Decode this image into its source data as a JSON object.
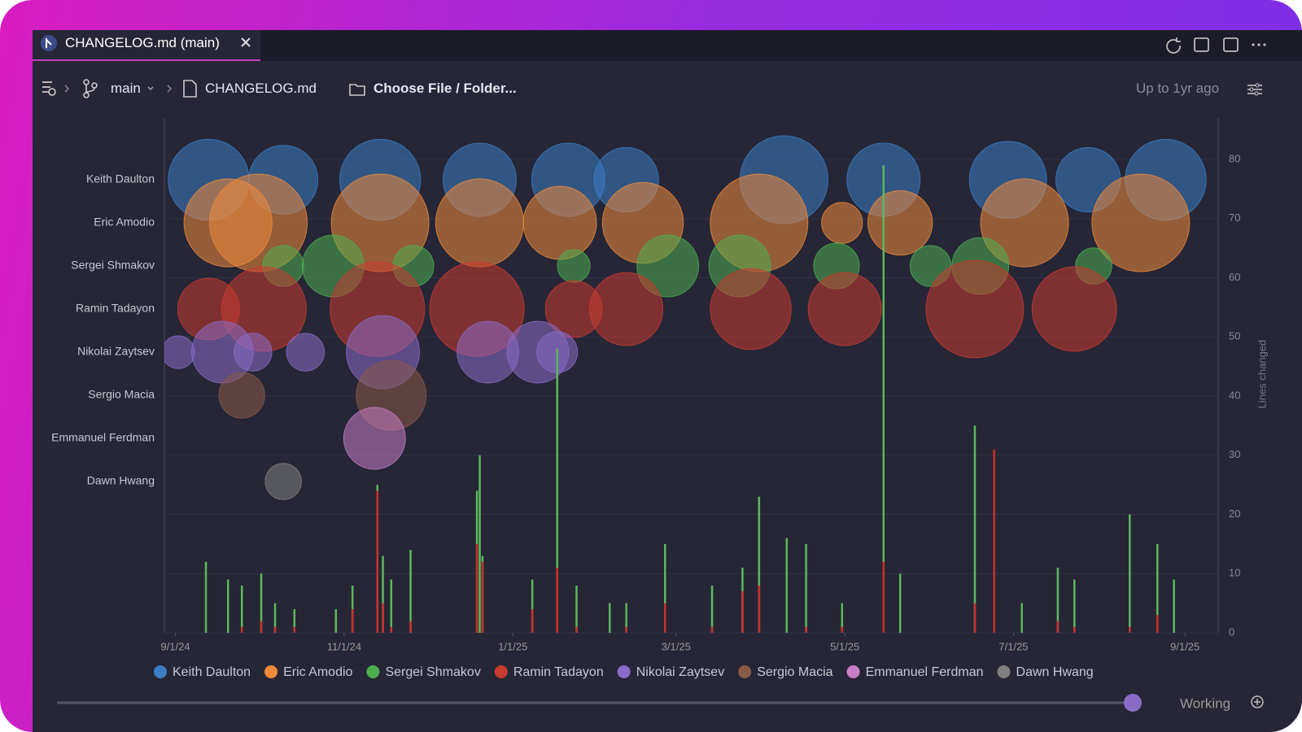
{
  "tab": {
    "title": "CHANGELOG.md (main)"
  },
  "toolbar": {
    "branch": "main",
    "file": "CHANGELOG.md",
    "picker": "Choose File / Folder...",
    "range": "Up to 1yr ago"
  },
  "footer": {
    "status": "Working"
  },
  "chart_data": {
    "type": "bubble",
    "y2label": "Lines changed",
    "xlim": [
      "2024-08-28",
      "2025-09-13"
    ],
    "xticks": [
      {
        "value": "2024-09-01",
        "label": "9/1/24"
      },
      {
        "value": "2024-11-01",
        "label": "11/1/24"
      },
      {
        "value": "2025-01-01",
        "label": "1/1/25"
      },
      {
        "value": "2025-03-01",
        "label": "3/1/25"
      },
      {
        "value": "2025-05-01",
        "label": "5/1/25"
      },
      {
        "value": "2025-07-01",
        "label": "7/1/25"
      },
      {
        "value": "2025-09-01",
        "label": "9/1/25"
      }
    ],
    "y2lim": [
      0,
      87
    ],
    "y2ticks": [
      0,
      10,
      20,
      30,
      40,
      50,
      60,
      70,
      80
    ],
    "grid": true,
    "series": [
      {
        "name": "Keith Daulton",
        "color": "#3b7dc4",
        "x": [
          "2024-09-13",
          "2024-10-10",
          "2024-11-14",
          "2024-12-20",
          "2025-01-21",
          "2025-02-11",
          "2025-04-09",
          "2025-05-15",
          "2025-06-29",
          "2025-07-28",
          "2025-08-25"
        ],
        "values": [
          1100,
          800,
          1100,
          900,
          900,
          700,
          1300,
          900,
          1000,
          700,
          1100
        ]
      },
      {
        "name": "Eric Amodio",
        "color": "#f08a3a",
        "x": [
          "2024-09-20",
          "2024-10-01",
          "2024-11-14",
          "2024-12-20",
          "2025-01-18",
          "2025-02-17",
          "2025-03-31",
          "2025-04-30",
          "2025-05-21",
          "2025-07-05",
          "2025-08-16"
        ],
        "values": [
          1300,
          1600,
          1600,
          1300,
          900,
          1100,
          1600,
          280,
          700,
          1300,
          1600
        ]
      },
      {
        "name": "Sergei Shmakov",
        "color": "#4caf50",
        "x": [
          "2024-10-10",
          "2024-10-28",
          "2024-11-26",
          "2025-01-23",
          "2025-02-26",
          "2025-03-24",
          "2025-04-28",
          "2025-06-01",
          "2025-06-19",
          "2025-07-30"
        ],
        "values": [
          280,
          640,
          280,
          180,
          640,
          640,
          350,
          280,
          540,
          220
        ]
      },
      {
        "name": "Ramin Tadayon",
        "color": "#c93a30",
        "x": [
          "2024-09-13",
          "2024-10-03",
          "2024-11-13",
          "2024-12-19",
          "2025-01-23",
          "2025-02-11",
          "2025-03-28",
          "2025-05-01",
          "2025-06-17",
          "2025-07-23"
        ],
        "values": [
          640,
          1200,
          1500,
          1500,
          540,
          900,
          1100,
          900,
          1600,
          1200
        ]
      },
      {
        "name": "Nikolai Zaytsev",
        "color": "#8a6cc8",
        "x": [
          "2024-09-02",
          "2024-09-18",
          "2024-09-29",
          "2024-10-18",
          "2024-11-15",
          "2024-12-23",
          "2025-01-10",
          "2025-01-17"
        ],
        "values": [
          180,
          640,
          240,
          240,
          900,
          640,
          640,
          280
        ]
      },
      {
        "name": "Sergio Macia",
        "color": "#8a5a48",
        "x": [
          "2024-09-25",
          "2024-11-18"
        ],
        "values": [
          350,
          820
        ]
      },
      {
        "name": "Emmanuel Ferdman",
        "color": "#c77ec7",
        "x": [
          "2024-11-12"
        ],
        "values": [
          640
        ]
      },
      {
        "name": "Dawn Hwang",
        "color": "#808080",
        "x": [
          "2024-10-10"
        ],
        "values": [
          220
        ]
      }
    ],
    "bars": {
      "axis": "y2",
      "colors": [
        "#5cb85c",
        "#c9302c"
      ],
      "x": [
        "2024-09-12",
        "2024-09-20",
        "2024-09-25",
        "2024-10-02",
        "2024-10-07",
        "2024-10-14",
        "2024-10-29",
        "2024-11-04",
        "2024-11-13",
        "2024-11-15",
        "2024-11-18",
        "2024-11-25",
        "2024-12-19",
        "2024-12-20",
        "2024-12-21",
        "2025-01-08",
        "2025-01-17",
        "2025-01-24",
        "2025-02-05",
        "2025-02-11",
        "2025-02-25",
        "2025-03-14",
        "2025-03-25",
        "2025-03-31",
        "2025-04-10",
        "2025-04-17",
        "2025-04-30",
        "2025-05-15",
        "2025-05-21",
        "2025-06-17",
        "2025-06-24",
        "2025-07-04",
        "2025-07-17",
        "2025-07-23",
        "2025-08-12",
        "2025-08-22",
        "2025-08-28"
      ],
      "additions": [
        12,
        9,
        8,
        10,
        5,
        4,
        4,
        8,
        25,
        13,
        9,
        14,
        24,
        30,
        13,
        9,
        48,
        8,
        5,
        5,
        15,
        8,
        11,
        23,
        16,
        15,
        5,
        79,
        10,
        35,
        2,
        5,
        11,
        9,
        20,
        15,
        9
      ],
      "deletions": [
        0,
        0,
        1,
        2,
        1,
        1,
        0,
        4,
        24,
        5,
        1,
        2,
        15,
        0,
        12,
        4,
        11,
        1,
        0,
        1,
        5,
        1,
        7,
        8,
        0,
        1,
        1,
        12,
        0,
        5,
        31,
        0,
        2,
        1,
        1,
        3,
        0
      ]
    }
  }
}
